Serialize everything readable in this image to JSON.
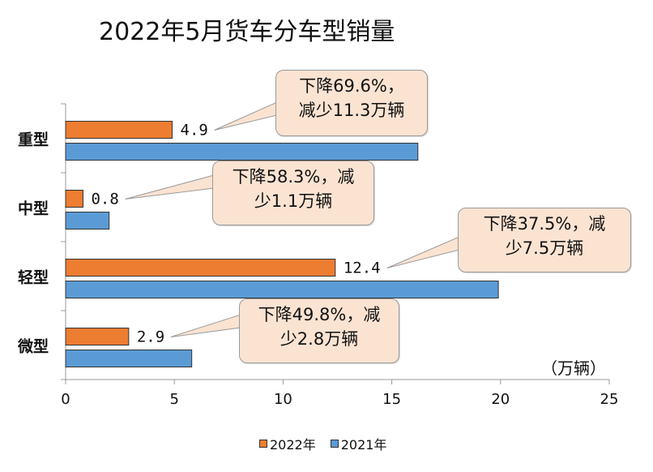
{
  "title": "2022年5月货车分车型销量",
  "unit_label": "（万辆）",
  "colors": {
    "series_2022": "#ed7d31",
    "series_2021": "#5b9bd5"
  },
  "chart_data": {
    "type": "bar",
    "orientation": "horizontal",
    "title": "2022年5月货车分车型销量",
    "categories": [
      "重型",
      "中型",
      "轻型",
      "微型"
    ],
    "series": [
      {
        "name": "2022年",
        "values": [
          4.9,
          0.8,
          12.4,
          2.9
        ],
        "color": "#ed7d31"
      },
      {
        "name": "2021年",
        "values": [
          16.2,
          2.0,
          19.9,
          5.8
        ],
        "color": "#5b9bd5"
      }
    ],
    "data_labels": [
      "4.9",
      "0.8",
      "12.4",
      "2.9"
    ],
    "xlim": [
      0,
      25
    ],
    "xticks": [
      "0",
      "5",
      "10",
      "15",
      "20",
      "25"
    ],
    "grid": false,
    "legend_position": "bottom"
  },
  "callouts": [
    {
      "lines": [
        "下降69.6%，",
        "减少11.3万辆"
      ]
    },
    {
      "lines": [
        "下降58.3%，减",
        "少1.1万辆"
      ]
    },
    {
      "lines": [
        "下降37.5%，减",
        "少7.5万辆"
      ]
    },
    {
      "lines": [
        "下降49.8%，减",
        "少2.8万辆"
      ]
    }
  ]
}
